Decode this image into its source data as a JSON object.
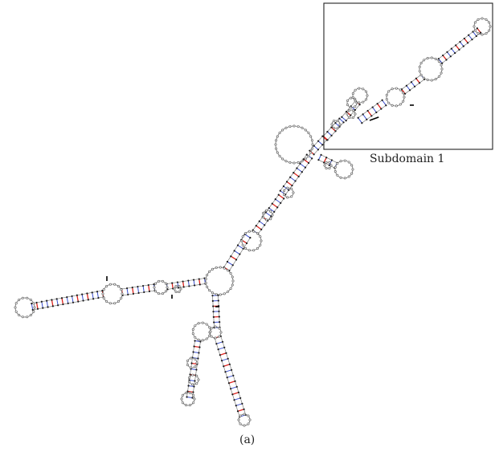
{
  "figure": {
    "annotation": "Subdomain 1",
    "caption": "(a)"
  },
  "colors": {
    "pair_au": "#3a4fd1",
    "pair_gc": "#e0241f",
    "backbone": "#7a7a7a",
    "loop": "#6b6b6b",
    "box": "#222222"
  }
}
